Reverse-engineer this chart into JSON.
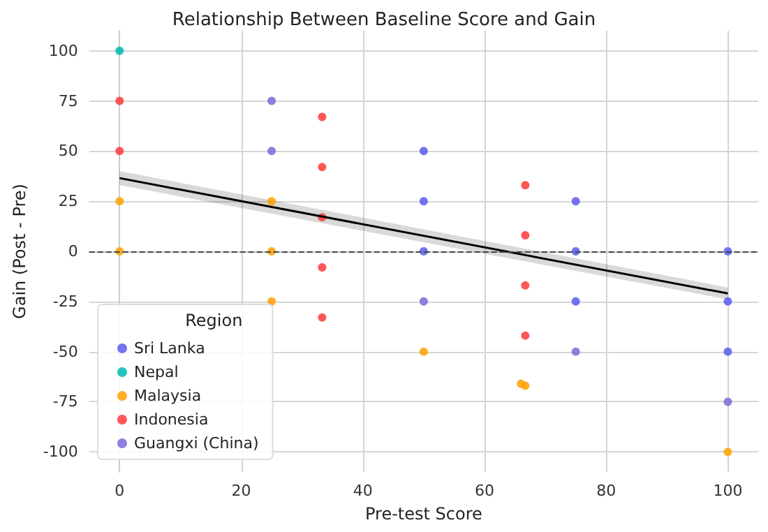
{
  "chart_data": {
    "type": "scatter",
    "title": "Relationship Between Baseline Score and Gain",
    "xlabel": "Pre-test Score",
    "ylabel": "Gain (Post - Pre)",
    "legend_title": "Region",
    "series": [
      {
        "name": "Sri Lanka",
        "color": "#5a5aee",
        "x": [
          50,
          50,
          50,
          75,
          75,
          75,
          100,
          100,
          100
        ],
        "values": [
          50,
          25,
          0,
          25,
          0,
          -25,
          0,
          -25,
          -50
        ]
      },
      {
        "name": "Nepal",
        "color": "#00b8b0",
        "x": [
          0
        ],
        "values": [
          100
        ]
      },
      {
        "name": "Malaysia",
        "color": "#ffa000",
        "x": [
          0,
          0,
          25,
          25,
          25,
          50,
          66,
          66.7,
          100
        ],
        "values": [
          25,
          0,
          25,
          0,
          -25,
          -50,
          -66,
          -67,
          -100
        ]
      },
      {
        "name": "Indonesia",
        "color": "#ff3a3a",
        "x": [
          0,
          0,
          33.3,
          33.3,
          33.3,
          33.3,
          33.3,
          66.7,
          66.7,
          66.7,
          66.7
        ],
        "values": [
          75,
          50,
          67,
          42,
          17,
          -8,
          -33,
          33,
          8,
          -17,
          -42
        ]
      },
      {
        "name": "Guangxi (China)",
        "color": "#7b68d8",
        "x": [
          25,
          25,
          50,
          75,
          100
        ],
        "values": [
          75,
          50,
          -25,
          -50,
          -75
        ]
      },
      {
        "type": "line",
        "marker": "none",
        "color": "#000000",
        "x": [
          0,
          100
        ],
        "values": [
          36.5,
          -21
        ],
        "lower": [
          33,
          -24
        ],
        "upper": [
          40,
          -18
        ]
      }
    ],
    "xlim": [
      -5,
      105
    ],
    "xticks": [
      0,
      20,
      40,
      60,
      80,
      100
    ],
    "ylim": [
      -110,
      110
    ],
    "yticks": [
      -100,
      -75,
      -50,
      -25,
      0,
      25,
      50,
      75,
      100
    ],
    "ref_lines": [
      {
        "axis": "y",
        "value": 0,
        "color": "#444444",
        "line_style": "dashed"
      }
    ],
    "grid": true,
    "legend": "bottom left",
    "marker": "circle"
  }
}
